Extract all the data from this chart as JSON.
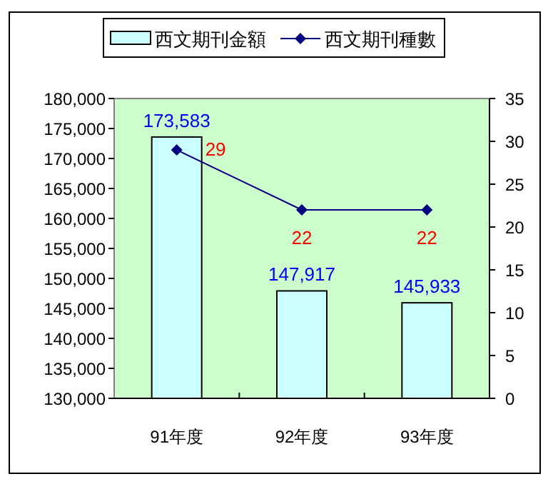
{
  "chart_data": {
    "type": "bar",
    "categories": [
      "91年度",
      "92年度",
      "93年度"
    ],
    "series": [
      {
        "name": "西文期刊金額",
        "color": "#ccffff",
        "values": [
          173583,
          147917,
          145933
        ],
        "value_labels": [
          "173,583",
          "147,917",
          "145,933"
        ]
      },
      {
        "name": "西文期刊種數",
        "type": "line",
        "axis": "y2",
        "color": "#000080",
        "values": [
          29,
          22,
          22
        ],
        "value_labels": [
          "29",
          "22",
          "22"
        ]
      }
    ],
    "marker": "diamond",
    "line_style": "solid",
    "legend": "top",
    "grid": false,
    "ylim": [
      130000,
      180000
    ],
    "yticks": [
      {
        "value": 130000,
        "label": "130,000"
      },
      {
        "value": 135000,
        "label": "135,000"
      },
      {
        "value": 140000,
        "label": "140,000"
      },
      {
        "value": 145000,
        "label": "145,000"
      },
      {
        "value": 150000,
        "label": "150,000"
      },
      {
        "value": 155000,
        "label": "155,000"
      },
      {
        "value": 160000,
        "label": "160,000"
      },
      {
        "value": 165000,
        "label": "165,000"
      },
      {
        "value": 170000,
        "label": "170,000"
      },
      {
        "value": 175000,
        "label": "175,000"
      },
      {
        "value": 180000,
        "label": "180,000"
      }
    ],
    "y2lim": [
      0,
      35
    ],
    "y2ticks": [
      0,
      5,
      10,
      15,
      20,
      25,
      30,
      35
    ]
  }
}
